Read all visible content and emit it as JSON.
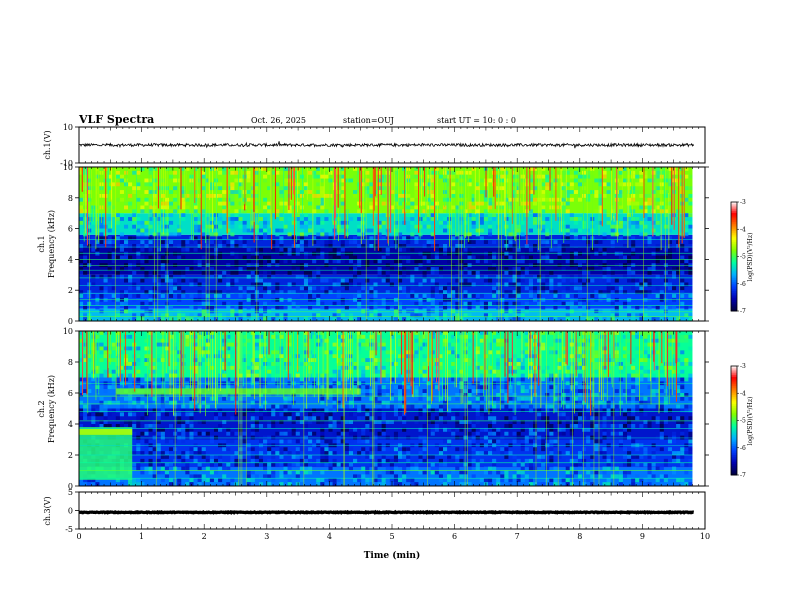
{
  "header": {
    "title": "VLF Spectra",
    "date": "Oct. 26, 2025",
    "station": "station=OUJ",
    "start": "start  UT =   10: 0  : 0"
  },
  "colors": {
    "bg": "#000050",
    "colormap": [
      "#00003a",
      "#0000b0",
      "#0040ff",
      "#00b0ff",
      "#00ffa0",
      "#80ff00",
      "#ffff00",
      "#ff8000",
      "#ff0000",
      "#ffffff"
    ]
  },
  "chart_data": [
    {
      "type": "line",
      "id": "ch1-wave",
      "ylabel": "ch.1(V)",
      "ylim": [
        -10,
        10
      ],
      "yticks": [
        10,
        -10
      ],
      "xlim": [
        0,
        10
      ],
      "baseline_v": 0,
      "amplitude_v": 0.8
    },
    {
      "type": "heatmap",
      "id": "ch1-spec",
      "ylabel": "ch.1\nFrequency (kHz)",
      "ylabel_lines": [
        "ch.1",
        "Frequency (kHz)"
      ],
      "ylim": [
        0,
        10
      ],
      "yticks": [
        0,
        2,
        4,
        6,
        8,
        10
      ],
      "xlim": [
        0,
        9.8
      ],
      "colorbar": {
        "label": "log(PSD)(V²/Hz)",
        "ticks": [
          "-3",
          "-4",
          "-5",
          "-6",
          "-7"
        ],
        "range": [
          -7,
          -3
        ]
      },
      "bands": [
        {
          "fmin": 0.0,
          "fmax": 0.8,
          "level": -5.6
        },
        {
          "fmin": 0.8,
          "fmax": 1.8,
          "level": -6.1
        },
        {
          "fmin": 1.8,
          "fmax": 3.0,
          "level": -6.3
        },
        {
          "fmin": 3.0,
          "fmax": 4.8,
          "level": -6.6
        },
        {
          "fmin": 4.8,
          "fmax": 5.6,
          "level": -6.3
        },
        {
          "fmin": 5.6,
          "fmax": 7.0,
          "level": -5.4
        },
        {
          "fmin": 7.0,
          "fmax": 10.0,
          "level": -4.8
        }
      ],
      "lines_khz": [
        0.3,
        0.6,
        1.0,
        1.4,
        1.8,
        2.3,
        2.8,
        3.3,
        3.6,
        4.0,
        4.4,
        4.8,
        5.3
      ]
    },
    {
      "type": "heatmap",
      "id": "ch2-spec",
      "ylabel": "ch.2\nFrequency (kHz)",
      "ylabel_lines": [
        "ch.2",
        "Frequency (kHz)"
      ],
      "ylim": [
        0,
        10
      ],
      "yticks": [
        0,
        2,
        4,
        6,
        8,
        10
      ],
      "xlim": [
        0,
        9.8
      ],
      "colorbar": {
        "label": "log(PSD)(V²/Hz)",
        "ticks": [
          "-3",
          "-4",
          "-5",
          "-6",
          "-7"
        ],
        "range": [
          -7,
          -3
        ]
      },
      "bands": [
        {
          "fmin": 0.0,
          "fmax": 1.2,
          "level": -5.9
        },
        {
          "fmin": 1.2,
          "fmax": 3.0,
          "level": -6.2
        },
        {
          "fmin": 3.0,
          "fmax": 5.0,
          "level": -6.4
        },
        {
          "fmin": 5.0,
          "fmax": 7.0,
          "level": -5.9
        },
        {
          "fmin": 7.0,
          "fmax": 10.0,
          "level": -5.2
        }
      ],
      "features": [
        {
          "tmin": 0.0,
          "tmax": 0.85,
          "fmin": 0.4,
          "fmax": 3.8,
          "level": -5.1
        },
        {
          "tmin": 0.0,
          "tmax": 0.85,
          "fmin": 3.3,
          "fmax": 3.7,
          "level": -4.6
        },
        {
          "tmin": 0.6,
          "tmax": 4.5,
          "fmin": 5.9,
          "fmax": 6.3,
          "level": -4.9
        }
      ],
      "lines_khz": [
        0.5,
        1.0,
        1.5,
        2.0,
        2.6,
        3.1,
        3.7,
        4.2,
        4.8,
        5.3,
        5.8,
        6.6
      ]
    },
    {
      "type": "line",
      "id": "ch3-wave",
      "ylabel": "ch.3(V)",
      "ylim": [
        -5,
        5
      ],
      "yticks": [
        5,
        0,
        -5
      ],
      "xlim": [
        0,
        10
      ],
      "baseline_v": -0.5,
      "amplitude_v": 0.1
    }
  ],
  "xaxis": {
    "label": "Time (min)",
    "ticks": [
      0,
      1,
      2,
      3,
      4,
      5,
      6,
      7,
      8,
      9,
      10
    ],
    "range": [
      0,
      10
    ]
  }
}
